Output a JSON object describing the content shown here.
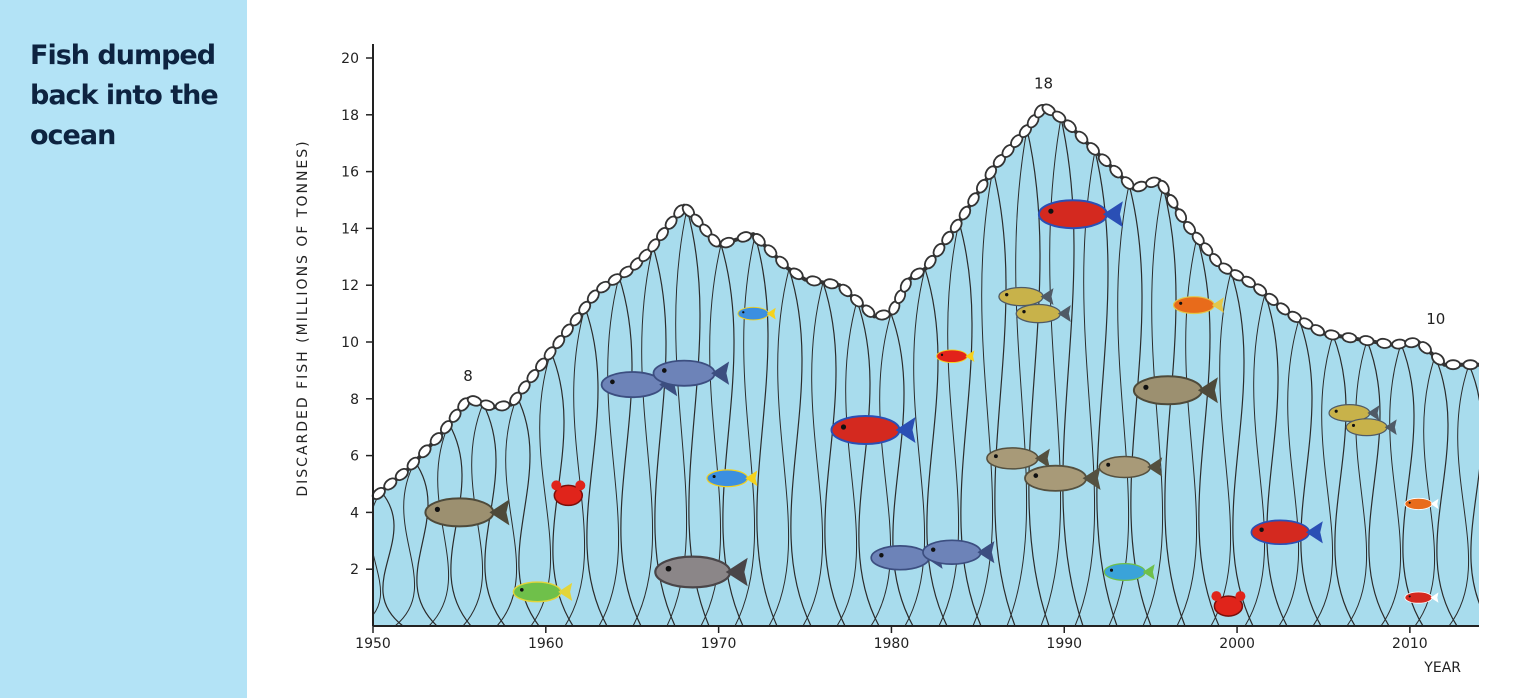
{
  "panel": {
    "title": "Fish dumped back into the ocean"
  },
  "colors": {
    "panel_bg": "#b3e3f6",
    "title_text": "#0d2340",
    "water_fill": "#a8dced",
    "net_line": "#2b2b2b"
  },
  "chart_data": {
    "type": "area",
    "title": "Fish dumped back into the ocean",
    "xlabel": "YEAR",
    "ylabel": "DISCARDED FISH (MILLIONS OF TONNES)",
    "xlim": [
      1950,
      2014
    ],
    "ylim": [
      0,
      20
    ],
    "xticks": [
      1950,
      1960,
      1970,
      1980,
      1990,
      2000,
      2010
    ],
    "yticks": [
      2,
      4,
      6,
      8,
      10,
      12,
      14,
      16,
      18,
      20
    ],
    "grid": false,
    "x": [
      1950,
      1952,
      1954,
      1955.5,
      1957,
      1958,
      1960,
      1962,
      1963,
      1965,
      1966,
      1968,
      1970,
      1972,
      1974,
      1975,
      1977,
      1979,
      1980,
      1981,
      1982,
      1984,
      1986,
      1988,
      1988.8,
      1990,
      1992,
      1994,
      1995.5,
      1997,
      1999,
      2001,
      2003,
      2005,
      2007,
      2009,
      2010.5,
      2012,
      2014
    ],
    "values": [
      4.5,
      5.5,
      6.8,
      8.0,
      7.7,
      7.8,
      9.4,
      11.0,
      11.8,
      12.6,
      13.2,
      14.8,
      13.4,
      13.8,
      12.6,
      12.2,
      12.0,
      10.9,
      11.0,
      12.2,
      12.6,
      14.3,
      16.2,
      17.6,
      18.3,
      17.8,
      16.6,
      15.4,
      15.7,
      14.2,
      12.7,
      12.0,
      11.0,
      10.3,
      10.1,
      9.9,
      10.0,
      9.2,
      9.2
    ],
    "annotations": [
      {
        "x": 1955.5,
        "y": 8.0,
        "text": "8"
      },
      {
        "x": 1988.8,
        "y": 18.3,
        "text": "18"
      },
      {
        "x": 2011.5,
        "y": 10.0,
        "text": "10"
      }
    ]
  }
}
